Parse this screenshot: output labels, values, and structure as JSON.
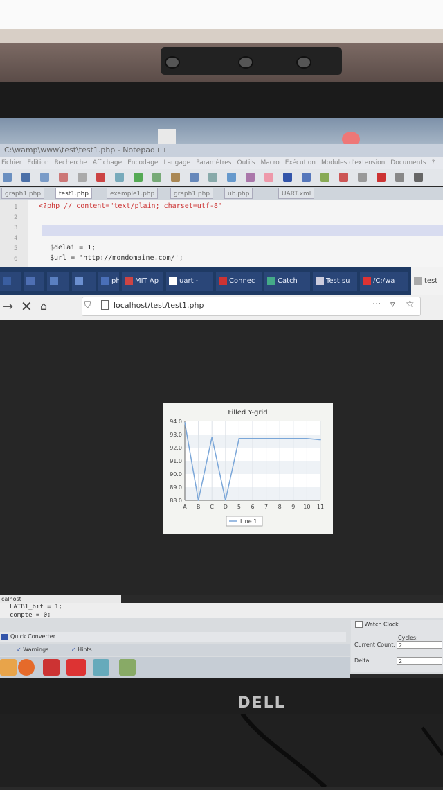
{
  "npp": {
    "title": "C:\\wamp\\www\\test\\test1.php - Notepad++",
    "menu": [
      "Fichier",
      "Edition",
      "Recherche",
      "Affichage",
      "Encodage",
      "Langage",
      "Paramètres",
      "Outils",
      "Macro",
      "Exécution",
      "Modules d'extension",
      "Documents",
      "?"
    ],
    "tabs": [
      "graph1.php",
      "test1.php",
      "exemple1.php",
      "graph1.php",
      "ub.php",
      "UART.xml"
    ],
    "active_tab_index": 1,
    "line_numbers": [
      "1",
      "2",
      "3",
      "4",
      "5",
      "6"
    ],
    "code_lines": [
      "<?php // content=\"text/plain; charset=utf-8\"",
      "",
      "",
      "",
      "$delai = 1;",
      "$url = 'http://mondomaine.com/';"
    ]
  },
  "firefox": {
    "tabs": [
      "",
      "",
      "",
      "",
      "php",
      "MIT Ap",
      "uart -",
      "Connec",
      "Catch",
      "Test su",
      "/C:/wa",
      "test"
    ],
    "url": "localhost/test/test1.php",
    "more_icon": "ellipsis-icon",
    "pocket_icon": "pocket-icon",
    "bookmark_icon": "star-icon"
  },
  "chart_data": {
    "type": "line",
    "title": "Filled Y-grid",
    "categories": [
      "A",
      "B",
      "C",
      "D",
      "5",
      "6",
      "7",
      "8",
      "9",
      "10",
      "11"
    ],
    "series": [
      {
        "name": "Line 1",
        "values": [
          93.9,
          88.0,
          92.8,
          88.0,
          92.7,
          92.7,
          92.7,
          92.7,
          92.7,
          92.7,
          92.6
        ]
      }
    ],
    "y_ticks": [
      "94.0",
      "93.0",
      "92.0",
      "91.0",
      "90.0",
      "89.0",
      "88.0"
    ],
    "ylim": [
      88,
      94
    ],
    "grid": true,
    "legend": "bottom-center",
    "colors": {
      "line": "#7aa6d8",
      "band_a": "#eef2f6",
      "band_b": "#ffffff"
    }
  },
  "ide": {
    "status_label": "calhost",
    "code_lines": [
      "LATB1_bit = 1;",
      "compte = 0;"
    ],
    "quick_converter": "Quick Converter",
    "warnings": "Warnings",
    "hints": "Hints",
    "watch": {
      "title": "Watch Clock",
      "cycles_label": "Cycles:",
      "current_count_label": "Current Count:",
      "current_count_value": "2",
      "delta_label": "Delta:",
      "delta_value": "2"
    }
  },
  "monitor": {
    "brand": "DELL"
  }
}
